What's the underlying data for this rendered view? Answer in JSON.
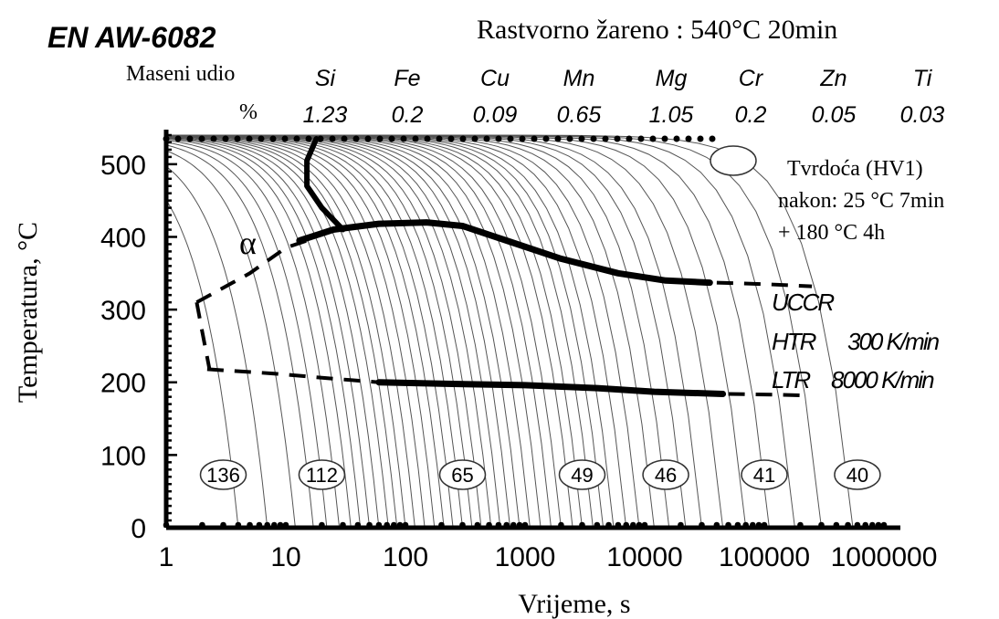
{
  "chart_data": {
    "type": "line",
    "alloy": "EN AW-6082",
    "treatment": "Rastvorno žareno : 540°C 20min",
    "composition": {
      "header": "Maseni udio",
      "unit": "%",
      "elements": [
        {
          "symbol": "Si",
          "value": "1.23"
        },
        {
          "symbol": "Fe",
          "value": "0.2"
        },
        {
          "symbol": "Cu",
          "value": "0.09"
        },
        {
          "symbol": "Mn",
          "value": "0.65"
        },
        {
          "symbol": "Mg",
          "value": "1.05"
        },
        {
          "symbol": "Cr",
          "value": "0.2"
        },
        {
          "symbol": "Zn",
          "value": "0.05"
        },
        {
          "symbol": "Ti",
          "value": "0.03"
        }
      ]
    },
    "xlabel": "Vrijeme, s",
    "ylabel": "Temperatura, °C",
    "xscale": "log",
    "xlim": [
      1,
      1000000
    ],
    "ylim": [
      0,
      540
    ],
    "xticks": [
      "1",
      "10",
      "100",
      "1000",
      "10000",
      "100000",
      "1000000"
    ],
    "yticks": [
      "0",
      "100",
      "200",
      "300",
      "400",
      "500"
    ],
    "phase_label": "α",
    "hardness_legend": {
      "line1": "Tvrdoća (HV1)",
      "line2": "nakon: 25 °C 7min",
      "line3": "+ 180 °C 4h"
    },
    "rates": {
      "ucr": "UCCR",
      "htr_label": "HTR",
      "htr_value": "300 K/min",
      "ltr_label": "LTR",
      "ltr_value": "8000 K/min"
    },
    "hardness": [
      {
        "t": 3,
        "hv": "136"
      },
      {
        "t": 20,
        "hv": "112"
      },
      {
        "t": 300,
        "hv": "65"
      },
      {
        "t": 3000,
        "hv": "49"
      },
      {
        "t": 15000,
        "hv": "46"
      },
      {
        "t": 100000,
        "hv": "41"
      },
      {
        "t": 600000,
        "hv": "40"
      }
    ],
    "cooling_curve_ends": [
      4,
      7,
      12,
      17,
      22,
      28,
      35,
      42,
      50,
      60,
      72,
      85,
      100,
      120,
      145,
      175,
      210,
      250,
      300,
      360,
      430,
      520,
      620,
      750,
      900,
      1100,
      1350,
      1650,
      2000,
      2500,
      3000,
      3700,
      4500,
      5500,
      7000,
      9000,
      12000,
      16000,
      22000,
      30000,
      45000,
      70000,
      110000,
      180000,
      300000,
      550000
    ],
    "phase_lines": {
      "upper_solid": [
        [
          13,
          395
        ],
        [
          25,
          410
        ],
        [
          60,
          418
        ],
        [
          150,
          420
        ],
        [
          300,
          415
        ],
        [
          700,
          395
        ],
        [
          2000,
          370
        ],
        [
          6000,
          350
        ],
        [
          15000,
          340
        ],
        [
          35000,
          337
        ]
      ],
      "upper_dashed": [
        [
          1.8,
          310
        ],
        [
          5,
          350
        ],
        [
          10,
          385
        ],
        [
          17,
          398
        ]
      ],
      "upper_dashed_right": [
        [
          40000,
          337
        ],
        [
          100000,
          335
        ],
        [
          250000,
          332
        ]
      ],
      "lower_solid": [
        [
          60,
          200
        ],
        [
          200,
          198
        ],
        [
          1000,
          196
        ],
        [
          4000,
          192
        ],
        [
          12000,
          187
        ],
        [
          45000,
          184
        ]
      ],
      "lower_dashed": [
        [
          2.2,
          218
        ],
        [
          8,
          212
        ],
        [
          25,
          205
        ],
        [
          60,
          200
        ]
      ],
      "lower_dashed_right": [
        [
          50000,
          184
        ],
        [
          120000,
          183
        ],
        [
          220000,
          182
        ]
      ],
      "left_connector": [
        [
          1.8,
          310
        ],
        [
          2.0,
          270
        ],
        [
          2.3,
          218
        ]
      ],
      "ucr_curve": [
        [
          18,
          535
        ],
        [
          15,
          505
        ],
        [
          15,
          470
        ],
        [
          20,
          440
        ],
        [
          30,
          410
        ]
      ]
    }
  }
}
